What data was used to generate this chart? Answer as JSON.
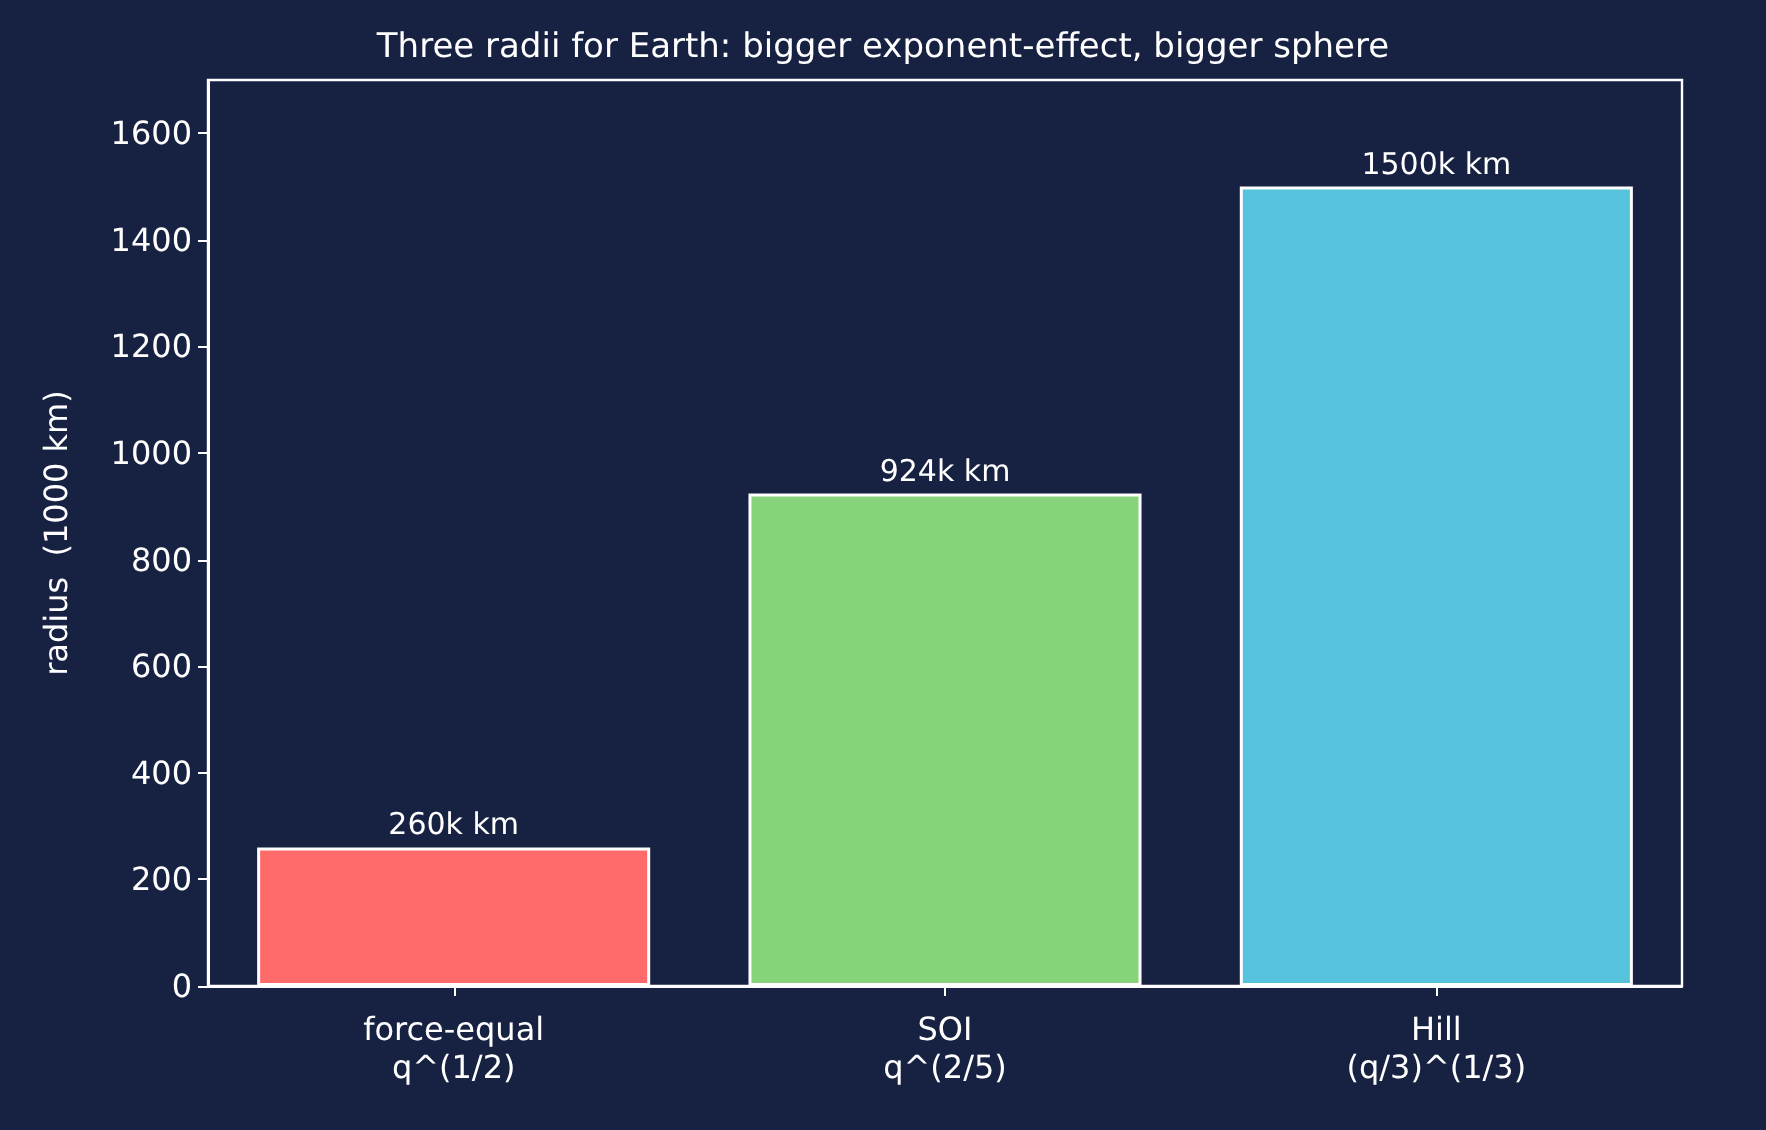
{
  "chart_data": {
    "type": "bar",
    "title": "Three radii for Earth: bigger exponent-effect, bigger sphere",
    "ylabel": "radius  (1000 km)",
    "categories": [
      "force-equal\nq^(1/2)",
      "SOI\nq^(2/5)",
      "Hill\n(q/3)^(1/3)"
    ],
    "values": [
      260,
      924,
      1500
    ],
    "colors": [
      "#ff6b6b",
      "#87d37c",
      "#56c2dc"
    ],
    "value_labels": [
      "260k km",
      "924k km",
      "1500k km"
    ],
    "ylim": [
      0,
      1700
    ],
    "yticks": [
      0,
      200,
      400,
      600,
      800,
      1000,
      1200,
      1400,
      1600
    ],
    "grid": false
  }
}
